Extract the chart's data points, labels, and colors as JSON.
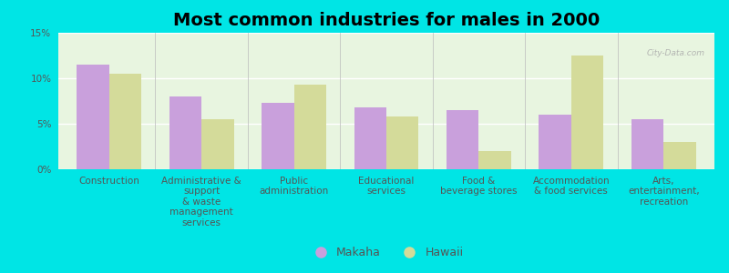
{
  "title": "Most common industries for males in 2000",
  "categories": [
    "Construction",
    "Administrative &\nsupport\n& waste\nmanagement\nservices",
    "Public\nadministration",
    "Educational\nservices",
    "Food &\nbeverage stores",
    "Accommodation\n& food services",
    "Arts,\nentertainment,\nrecreation"
  ],
  "makaha": [
    11.5,
    8.0,
    7.3,
    6.8,
    6.5,
    6.0,
    5.5
  ],
  "hawaii": [
    10.5,
    5.5,
    9.3,
    5.8,
    2.0,
    12.5,
    3.0
  ],
  "makaha_color": "#c9a0dc",
  "hawaii_color": "#d4db9a",
  "background_color": "#00e5e5",
  "plot_bg_top": "#e8f5e0",
  "plot_bg_bottom": "#f5faf0",
  "ylim": [
    0,
    15
  ],
  "yticks": [
    0,
    5,
    10,
    15
  ],
  "ytick_labels": [
    "0%",
    "5%",
    "10%",
    "15%"
  ],
  "bar_width": 0.35,
  "title_fontsize": 14,
  "tick_fontsize": 7.5,
  "legend_fontsize": 9,
  "watermark": "City-Data.com"
}
